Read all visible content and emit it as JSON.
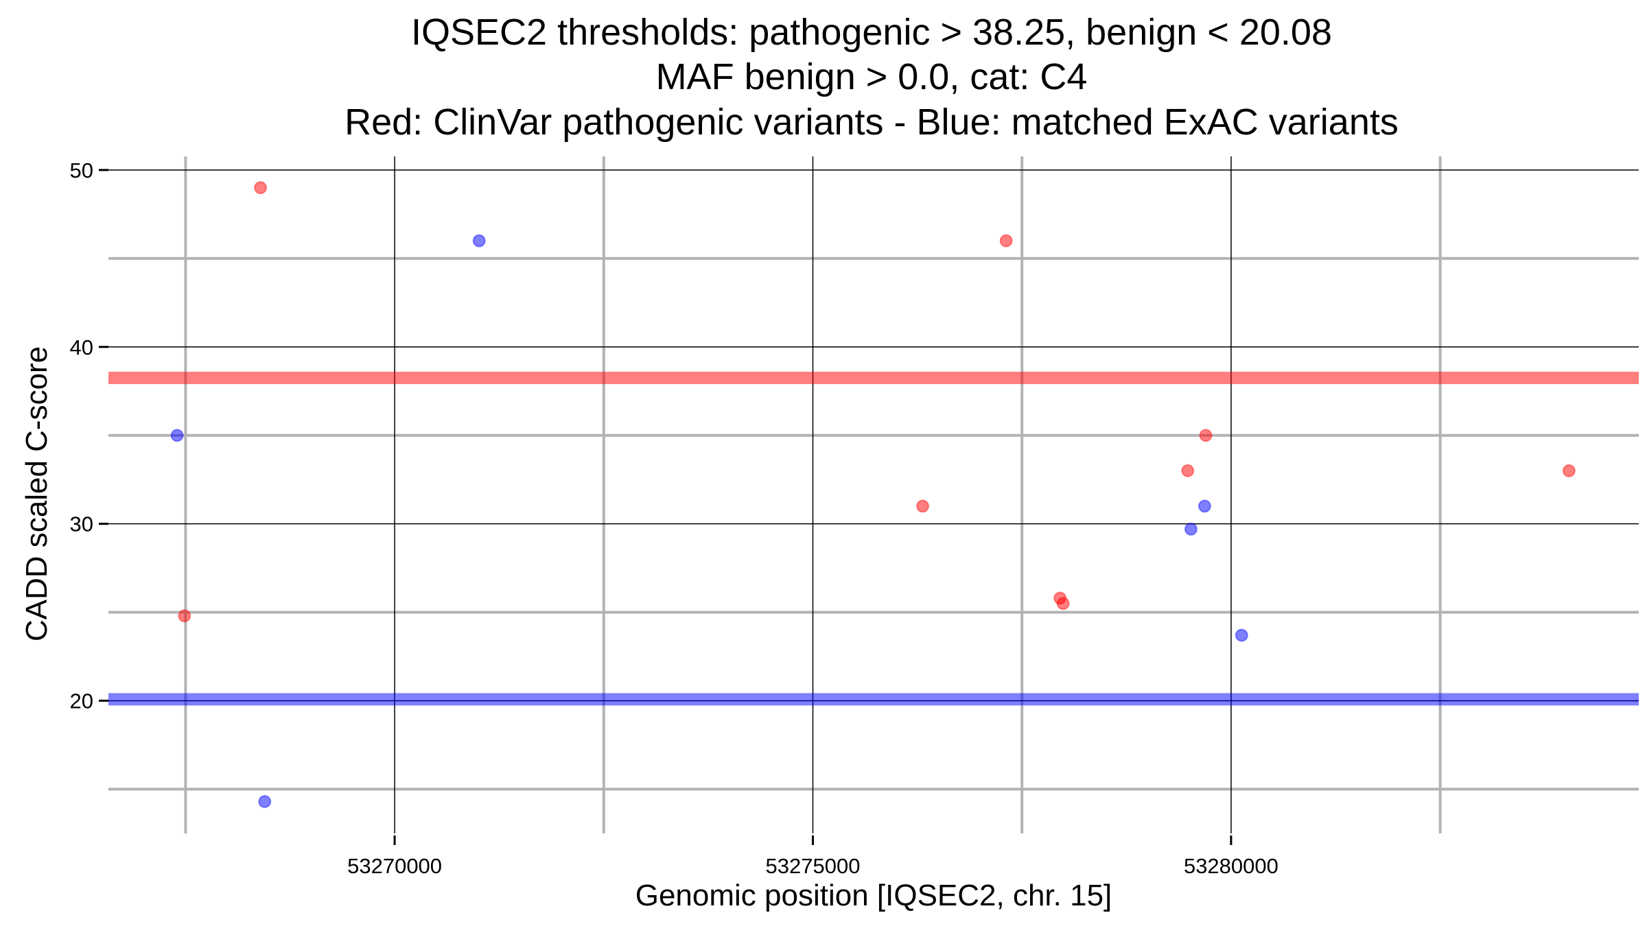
{
  "chart_data": {
    "type": "scatter",
    "title_lines": [
      "IQSEC2 thresholds: pathogenic > 38.25, benign < 20.08",
      "MAF benign > 0.0, cat: C4",
      "Red: ClinVar pathogenic variants - Blue: matched ExAC variants"
    ],
    "xlabel": "Genomic position [IQSEC2, chr. 15]",
    "ylabel": "CADD scaled C-score",
    "xlim": [
      53266578,
      53284874
    ],
    "ylim": [
      12.5,
      50.77
    ],
    "x_ticks": [
      53270000,
      53275000,
      53280000
    ],
    "x_tick_labels": [
      "53270000",
      "53275000",
      "53280000"
    ],
    "x_minor": [
      53267500,
      53272500,
      53277500,
      53282500
    ],
    "y_ticks": [
      20,
      30,
      40,
      50
    ],
    "y_tick_labels": [
      "20",
      "30",
      "40",
      "50"
    ],
    "y_minor": [
      15,
      25,
      35,
      45
    ],
    "grid": true,
    "thresholds": {
      "pathogenic": 38.25,
      "benign": 20.08
    },
    "colors": {
      "pathogenic": "#ff0000",
      "benign": "#0000ff"
    },
    "series": [
      {
        "name": "ClinVar pathogenic variants",
        "color": "#ff0000",
        "points": [
          [
            53268396,
            49.0
          ],
          [
            53277311,
            46.0
          ],
          [
            53267487,
            24.8
          ],
          [
            53276313,
            31.0
          ],
          [
            53279697,
            35.0
          ],
          [
            53279482,
            33.0
          ],
          [
            53277955,
            25.8
          ],
          [
            53277992,
            25.5
          ],
          [
            53284040,
            33.0
          ]
        ]
      },
      {
        "name": "matched ExAC variants",
        "color": "#0000ff",
        "points": [
          [
            53271010,
            46.0
          ],
          [
            53267399,
            35.0
          ],
          [
            53268447,
            14.3
          ],
          [
            53279684,
            31.0
          ],
          [
            53279520,
            29.7
          ],
          [
            53280126,
            23.7
          ]
        ]
      }
    ]
  }
}
